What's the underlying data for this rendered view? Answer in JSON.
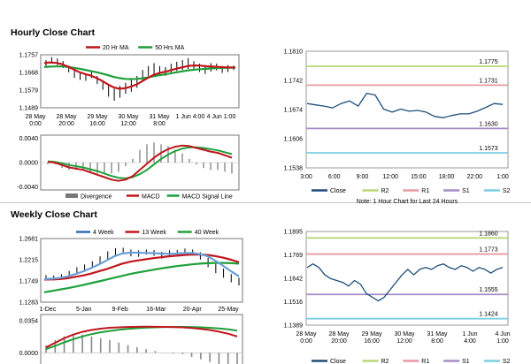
{
  "hourly": {
    "title": "Hourly Close Chart",
    "price": {
      "legend": [
        {
          "name": "20 Hr MA",
          "color": "#c0161c"
        },
        {
          "name": "50 Hrs MA",
          "color": "#1ea03a"
        }
      ],
      "y_ticks": [
        "1.1757",
        "1.1668",
        "1.1579",
        "1.1489"
      ],
      "ylim": [
        1.1489,
        1.1757
      ],
      "x_ticks": [
        [
          "28 May",
          "0:00"
        ],
        [
          "28 May",
          "20:00"
        ],
        [
          "29 May",
          "16:00"
        ],
        [
          "30 May",
          "12:00"
        ],
        [
          "31 May",
          "8:00"
        ],
        [
          "1 Jun 4:00",
          ""
        ],
        [
          "4 Jun 1:00",
          ""
        ]
      ],
      "ohlc": [
        [
          1.17,
          1.173
        ],
        [
          1.1712,
          1.1745
        ],
        [
          1.1705,
          1.1738
        ],
        [
          1.169,
          1.1725
        ],
        [
          1.1668,
          1.1702
        ],
        [
          1.164,
          1.168
        ],
        [
          1.163,
          1.1665
        ],
        [
          1.1625,
          1.166
        ],
        [
          1.164,
          1.167
        ],
        [
          1.161,
          1.165
        ],
        [
          1.158,
          1.1625
        ],
        [
          1.1545,
          1.16
        ],
        [
          1.1525,
          1.1585
        ],
        [
          1.154,
          1.16
        ],
        [
          1.156,
          1.1615
        ],
        [
          1.157,
          1.163
        ],
        [
          1.159,
          1.165
        ],
        [
          1.162,
          1.168
        ],
        [
          1.165,
          1.17
        ],
        [
          1.166,
          1.1715
        ],
        [
          1.1655,
          1.17
        ],
        [
          1.165,
          1.1695
        ],
        [
          1.1665,
          1.1712
        ],
        [
          1.1675,
          1.1722
        ],
        [
          1.168,
          1.173
        ],
        [
          1.1685,
          1.174
        ],
        [
          1.168,
          1.1725
        ],
        [
          1.167,
          1.1712
        ],
        [
          1.166,
          1.1705
        ],
        [
          1.1672,
          1.1715
        ],
        [
          1.1678,
          1.1712
        ],
        [
          1.1665,
          1.17
        ],
        [
          1.167,
          1.1705
        ],
        [
          1.168,
          1.1702
        ]
      ],
      "close": [
        1.1718,
        1.1728,
        1.172,
        1.1705,
        1.1685,
        1.166,
        1.1648,
        1.1642,
        1.1655,
        1.163,
        1.16,
        1.157,
        1.1558,
        1.1575,
        1.1592,
        1.1605,
        1.1625,
        1.1655,
        1.168,
        1.169,
        1.1675,
        1.1672,
        1.169,
        1.17,
        1.171,
        1.1715,
        1.17,
        1.169,
        1.1685,
        1.1695,
        1.1693,
        1.1683,
        1.1688,
        1.1692
      ],
      "ma20": [
        1.1715,
        1.1718,
        1.1716,
        1.171,
        1.1698,
        1.1684,
        1.167,
        1.166,
        1.1652,
        1.164,
        1.1625,
        1.1607,
        1.1592,
        1.1585,
        1.1588,
        1.1596,
        1.1608,
        1.1625,
        1.1642,
        1.1657,
        1.1666,
        1.1672,
        1.168,
        1.1688,
        1.1695,
        1.1701,
        1.1703,
        1.1702,
        1.1699,
        1.1697,
        1.1696,
        1.1694,
        1.1693,
        1.1693
      ],
      "ma50": [
        1.1695,
        1.1697,
        1.1698,
        1.1698,
        1.1696,
        1.1692,
        1.1687,
        1.1681,
        1.1675,
        1.1669,
        1.1662,
        1.1654,
        1.1645,
        1.1639,
        1.1635,
        1.1634,
        1.1635,
        1.1638,
        1.1643,
        1.1649,
        1.1654,
        1.1659,
        1.1664,
        1.1669,
        1.1674,
        1.1679,
        1.1682,
        1.1684,
        1.1686,
        1.1688,
        1.169,
        1.1691,
        1.1692,
        1.1692
      ]
    },
    "macd": {
      "legend": [
        {
          "name": "Divergence",
          "color": "#777777"
        },
        {
          "name": "MACD",
          "color": "#c0161c"
        },
        {
          "name": "MACD Signal Line",
          "color": "#1ea03a"
        }
      ],
      "y_ticks": [
        "0.0040",
        "0.0000",
        "-0.0040"
      ],
      "ylim": [
        -0.0045,
        0.0045
      ],
      "macd": [
        0.0001,
        0.0,
        -0.0004,
        -0.0008,
        -0.001,
        -0.0012,
        -0.0016,
        -0.002,
        -0.0024,
        -0.0028,
        -0.003,
        -0.0028,
        -0.0022,
        -0.0012,
        -0.0002,
        0.0008,
        0.0016,
        0.0022,
        0.0026,
        0.0028,
        0.0027,
        0.0024,
        0.0021,
        0.0018,
        0.0016,
        0.0012,
        0.0008
      ],
      "signal": [
        0.0002,
        0.0001,
        -0.0001,
        -0.0004,
        -0.0006,
        -0.0008,
        -0.0011,
        -0.0014,
        -0.0018,
        -0.0022,
        -0.0025,
        -0.0026,
        -0.0024,
        -0.0019,
        -0.0012,
        -0.0003,
        0.0006,
        0.0013,
        0.0019,
        0.0023,
        0.0025,
        0.0025,
        0.0024,
        0.0022,
        0.002,
        0.0017,
        0.0014
      ]
    },
    "last24": {
      "y_ticks": [
        "1.1810",
        "1.1742",
        "1.1674",
        "1.1606",
        "1.1538"
      ],
      "ylim": [
        1.1538,
        1.181
      ],
      "x_ticks": [
        "3:00",
        "6:00",
        "9:00",
        "12:00",
        "15:00",
        "18:00",
        "22:00",
        "1:00"
      ],
      "levels": [
        {
          "key": "R2",
          "value": 1.1775,
          "label": "1.1775",
          "color": "#b9d77a"
        },
        {
          "key": "R1",
          "value": 1.1731,
          "label": "1.1731",
          "color": "#e89aa0"
        },
        {
          "key": "S1",
          "value": 1.163,
          "label": "1.1630",
          "color": "#a58cc4"
        },
        {
          "key": "S2",
          "value": 1.1573,
          "label": "1.1573",
          "color": "#7ccfe0"
        }
      ],
      "close": [
        1.1688,
        1.1685,
        1.1682,
        1.1678,
        1.1688,
        1.1694,
        1.1682,
        1.1712,
        1.1708,
        1.1675,
        1.1668,
        1.1675,
        1.167,
        1.1672,
        1.1668,
        1.1658,
        1.1655,
        1.166,
        1.1664,
        1.1664,
        1.167,
        1.1679,
        1.1688,
        1.1686
      ],
      "legend": [
        {
          "name": "Close",
          "color": "#1f4e79"
        },
        {
          "name": "R2",
          "color": "#b9d77a"
        },
        {
          "name": "R1",
          "color": "#e89aa0"
        },
        {
          "name": "S1",
          "color": "#a58cc4"
        },
        {
          "name": "S2",
          "color": "#7ccfe0"
        }
      ],
      "note": "Note: 1 Hour Chart for Last 24 Hours"
    }
  },
  "weekly": {
    "title": "Weekly Close Chart",
    "price": {
      "legend": [
        {
          "name": "4 Week",
          "color": "#2f6db5"
        },
        {
          "name": "13 Week",
          "color": "#c0161c"
        },
        {
          "name": "40 Week",
          "color": "#1ea03a"
        }
      ],
      "y_ticks": [
        "1.2681",
        "1.2215",
        "1.1749",
        "1.1283"
      ],
      "ylim": [
        1.1283,
        1.2681
      ],
      "x_ticks": [
        "1-Dec",
        "5-Jan",
        "9-Feb",
        "16-Mar",
        "20-Apr",
        "25-May"
      ],
      "ohlc": [
        [
          1.179,
          1.188
        ],
        [
          1.176,
          1.187
        ],
        [
          1.179,
          1.19
        ],
        [
          1.185,
          1.197
        ],
        [
          1.19,
          1.205
        ],
        [
          1.195,
          1.211
        ],
        [
          1.203,
          1.218
        ],
        [
          1.212,
          1.229
        ],
        [
          1.222,
          1.24
        ],
        [
          1.23,
          1.247
        ],
        [
          1.238,
          1.248
        ],
        [
          1.229,
          1.244
        ],
        [
          1.228,
          1.242
        ],
        [
          1.233,
          1.244
        ],
        [
          1.23,
          1.243
        ],
        [
          1.224,
          1.239
        ],
        [
          1.229,
          1.242
        ],
        [
          1.23,
          1.243
        ],
        [
          1.232,
          1.246
        ],
        [
          1.231,
          1.244
        ],
        [
          1.222,
          1.238
        ],
        [
          1.205,
          1.226
        ],
        [
          1.192,
          1.212
        ],
        [
          1.182,
          1.202
        ],
        [
          1.172,
          1.19
        ],
        [
          1.165,
          1.182
        ]
      ],
      "close": [
        1.183,
        1.182,
        1.186,
        1.193,
        1.201,
        1.206,
        1.214,
        1.225,
        1.235,
        1.241,
        1.242,
        1.235,
        1.236,
        1.239,
        1.235,
        1.232,
        1.236,
        1.237,
        1.24,
        1.235,
        1.228,
        1.215,
        1.201,
        1.19,
        1.179,
        1.17
      ],
      "ma4": [
        1.179,
        1.18,
        1.1815,
        1.185,
        1.19,
        1.196,
        1.203,
        1.211,
        1.22,
        1.229,
        1.235,
        1.237,
        1.237,
        1.2365,
        1.236,
        1.235,
        1.2345,
        1.235,
        1.236,
        1.2365,
        1.234,
        1.229,
        1.219,
        1.208,
        1.196,
        1.185
      ],
      "ma13": [
        1.178,
        1.1782,
        1.179,
        1.181,
        1.184,
        1.187,
        1.191,
        1.196,
        1.201,
        1.207,
        1.213,
        1.217,
        1.22,
        1.2225,
        1.225,
        1.227,
        1.229,
        1.2305,
        1.232,
        1.233,
        1.233,
        1.232,
        1.2295,
        1.226,
        1.2215,
        1.216
      ],
      "ma40": [
        1.15,
        1.153,
        1.156,
        1.159,
        1.1625,
        1.166,
        1.17,
        1.174,
        1.178,
        1.182,
        1.186,
        1.19,
        1.1935,
        1.1965,
        1.1995,
        1.2025,
        1.205,
        1.2075,
        1.2095,
        1.2115,
        1.213,
        1.214,
        1.2145,
        1.2145,
        1.214,
        1.213
      ]
    },
    "macd": {
      "y_ticks": [
        "0.0354",
        "0.0000"
      ],
      "ylim": [
        -0.02,
        0.042
      ],
      "macd": [
        0.006,
        0.011,
        0.016,
        0.02,
        0.023,
        0.025,
        0.0265,
        0.0275,
        0.028,
        0.0283,
        0.0285,
        0.0286,
        0.0285,
        0.0284,
        0.0282,
        0.028,
        0.0272,
        0.0262,
        0.025,
        0.0232,
        0.021,
        0.018
      ],
      "signal": [
        0.004,
        0.0075,
        0.0115,
        0.015,
        0.018,
        0.0205,
        0.0225,
        0.024,
        0.0252,
        0.0262,
        0.027,
        0.0276,
        0.028,
        0.0283,
        0.0284,
        0.0284,
        0.0283,
        0.028,
        0.0275,
        0.0268,
        0.0258,
        0.0244
      ]
    },
    "long": {
      "y_ticks": [
        "1.1895",
        "1.1769",
        "1.1642",
        "1.1516",
        "1.1389"
      ],
      "ylim": [
        1.1389,
        1.1895
      ],
      "x_ticks": [
        [
          "28 May",
          "0:00"
        ],
        [
          "28 May",
          "20:00"
        ],
        [
          "29 May",
          "16:00"
        ],
        [
          "30 May",
          "12:00"
        ],
        [
          "31 May",
          "8:00"
        ],
        [
          "1 Jun",
          "4:00"
        ],
        [
          "4 Jun",
          "1:00"
        ]
      ],
      "levels": [
        {
          "key": "R2",
          "value": 1.186,
          "label": "1.1860",
          "color": "#b9d77a"
        },
        {
          "key": "R1",
          "value": 1.1773,
          "label": "1.1773",
          "color": "#e89aa0"
        },
        {
          "key": "S1",
          "value": 1.1555,
          "label": "1.1555",
          "color": "#a58cc4"
        },
        {
          "key": "S2",
          "value": 1.1424,
          "label": "1.1424",
          "color": "#7ccfe0"
        }
      ],
      "close": [
        1.17,
        1.172,
        1.17,
        1.166,
        1.164,
        1.163,
        1.162,
        1.16,
        1.163,
        1.161,
        1.156,
        1.154,
        1.152,
        1.154,
        1.158,
        1.162,
        1.166,
        1.169,
        1.166,
        1.169,
        1.17,
        1.169,
        1.171,
        1.172,
        1.17,
        1.169,
        1.171,
        1.17,
        1.168,
        1.17,
        1.169,
        1.167,
        1.169,
        1.17
      ],
      "legend": [
        {
          "name": "Close",
          "color": "#1f4e79"
        },
        {
          "name": "R2",
          "color": "#b9d77a"
        },
        {
          "name": "R1",
          "color": "#e89aa0"
        },
        {
          "name": "S1",
          "color": "#a58cc4"
        },
        {
          "name": "S2",
          "color": "#7ccfe0"
        }
      ]
    }
  }
}
